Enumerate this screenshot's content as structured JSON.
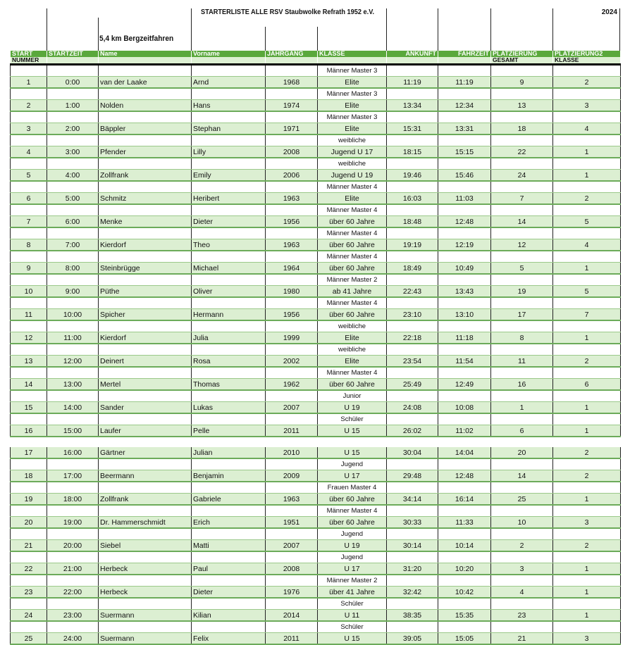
{
  "title": "STARTERLISTE ALLE RSV Staubwolke Refrath 1952 e.V.",
  "year": "2024",
  "subtitle": "5,4 km Bergzeitfahren",
  "header": [
    "START",
    "STARTZEIT",
    "Name",
    "Vorname",
    "JAHRGANG",
    "KLASSE",
    "ANKUNFT",
    "FAHRZEIT",
    "PLATZIERUNG",
    "PLATZIERUNG2"
  ],
  "header2": [
    "NUMMER",
    "",
    "",
    "",
    "",
    "",
    "",
    "",
    "GESAMT",
    "KLASSE"
  ],
  "colors": {
    "header": "#5aa83c",
    "row": "#dcefd2"
  },
  "riders": [
    [
      "1",
      "0:00",
      "van der Laake",
      "Arnd",
      "1968",
      "Männer Master 3",
      "Elite",
      "11:19",
      "11:19",
      "9",
      "2"
    ],
    [
      "2",
      "1:00",
      "Nolden",
      "Hans",
      "1974",
      "Männer Master  3",
      "Elite",
      "13:34",
      "12:34",
      "13",
      "3"
    ],
    [
      "3",
      "2:00",
      "Bäppler",
      "Stephan",
      "1971",
      "Männer Master 3",
      "Elite",
      "15:31",
      "13:31",
      "18",
      "4"
    ],
    [
      "4",
      "3:00",
      "Pfender",
      "Lilly",
      "2008",
      "weibliche",
      "Jugend  U 17",
      "18:15",
      "15:15",
      "22",
      "1"
    ],
    [
      "5",
      "4:00",
      "Zollfrank",
      "Emily",
      "2006",
      "weibliche",
      "Jugend U  19",
      "19:46",
      "15:46",
      "24",
      "1"
    ],
    [
      "6",
      "5:00",
      "Schmitz",
      "Heribert",
      "1963",
      "Männer Master 4",
      "Elite",
      "16:03",
      "11:03",
      "7",
      "2"
    ],
    [
      "7",
      "6:00",
      "Menke",
      "Dieter",
      "1956",
      "Männer Master 4",
      "über 60 Jahre",
      "18:48",
      "12:48",
      "14",
      "5"
    ],
    [
      "8",
      "7:00",
      "Kierdorf",
      "Theo",
      "1963",
      "Männer Master 4",
      "über 60 Jahre",
      "19:19",
      "12:19",
      "12",
      "4"
    ],
    [
      "9",
      "8:00",
      "Steinbrügge",
      "Michael",
      "1964",
      "Männer Master 4",
      "über 60 Jahre",
      "18:49",
      "10:49",
      "5",
      "1"
    ],
    [
      "10",
      "9:00",
      "Püthe",
      "Oliver",
      "1980",
      "Männer Master 2",
      "ab 41 Jahre",
      "22:43",
      "13:43",
      "19",
      "5"
    ],
    [
      "11",
      "10:00",
      "Spicher",
      "Hermann",
      "1956",
      "Männer Master 4",
      "über 60 Jahre",
      "23:10",
      "13:10",
      "17",
      "7"
    ],
    [
      "12",
      "11:00",
      "Kierdorf",
      "Julia",
      "1999",
      "weibliche",
      "Elite",
      "22:18",
      "11:18",
      "8",
      "1"
    ],
    [
      "13",
      "12:00",
      "Deinert",
      "Rosa",
      "2002",
      "weibliche",
      "Elite",
      "23:54",
      "11:54",
      "11",
      "2"
    ],
    [
      "14",
      "13:00",
      "Mertel",
      "Thomas",
      "1962",
      "Männer Master 4",
      "über 60 Jahre",
      "25:49",
      "12:49",
      "16",
      "6"
    ],
    [
      "15",
      "14:00",
      "Sander",
      "Lukas",
      "2007",
      "Junior",
      "U 19",
      "24:08",
      "10:08",
      "1",
      "1"
    ],
    [
      "16",
      "15:00",
      "Laufer",
      "Pelle",
      "2011",
      "Schüler",
      "U 15",
      "26:02",
      "11:02",
      "6",
      "1"
    ],
    [
      "17",
      "16:00",
      "Gärtner",
      "Julian",
      "2010",
      null,
      "U 15",
      "30:04",
      "14:04",
      "20",
      "2"
    ],
    [
      "18",
      "17:00",
      "Beermann",
      "Benjamin",
      "2009",
      "Jugend",
      "U 17",
      "29:48",
      "12:48",
      "14",
      "2"
    ],
    [
      "19",
      "18:00",
      "Zollfrank",
      "Gabriele",
      "1963",
      "Frauen Master 4",
      "über 60 Jahre",
      "34:14",
      "16:14",
      "25",
      "1"
    ],
    [
      "20",
      "19:00",
      "Dr. Hammerschmidt",
      "Erich",
      "1951",
      "Männer Master 4",
      "über 60 Jahre",
      "30:33",
      "11:33",
      "10",
      "3"
    ],
    [
      "21",
      "20:00",
      "Siebel",
      "Matti",
      "2007",
      "Jugend",
      "U 19",
      "30:14",
      "10:14",
      "2",
      "2"
    ],
    [
      "22",
      "21:00",
      "Herbeck",
      "Paul",
      "2008",
      "Jugend",
      "U 17",
      "31:20",
      "10:20",
      "3",
      "1"
    ],
    [
      "23",
      "22:00",
      "Herbeck",
      "Dieter",
      "1976",
      "Männer Master 2",
      "über 41 Jahre",
      "32:42",
      "10:42",
      "4",
      "1"
    ],
    [
      "24",
      "23:00",
      "Suermann",
      "Kilian",
      "2014",
      "Schüler",
      "U 11",
      "38:35",
      "15:35",
      "23",
      "1"
    ],
    [
      "25",
      "24:00",
      "Suermann",
      "Felix",
      "2011",
      "Schüler",
      "U 15",
      "39:05",
      "15:05",
      "21",
      "3"
    ]
  ]
}
